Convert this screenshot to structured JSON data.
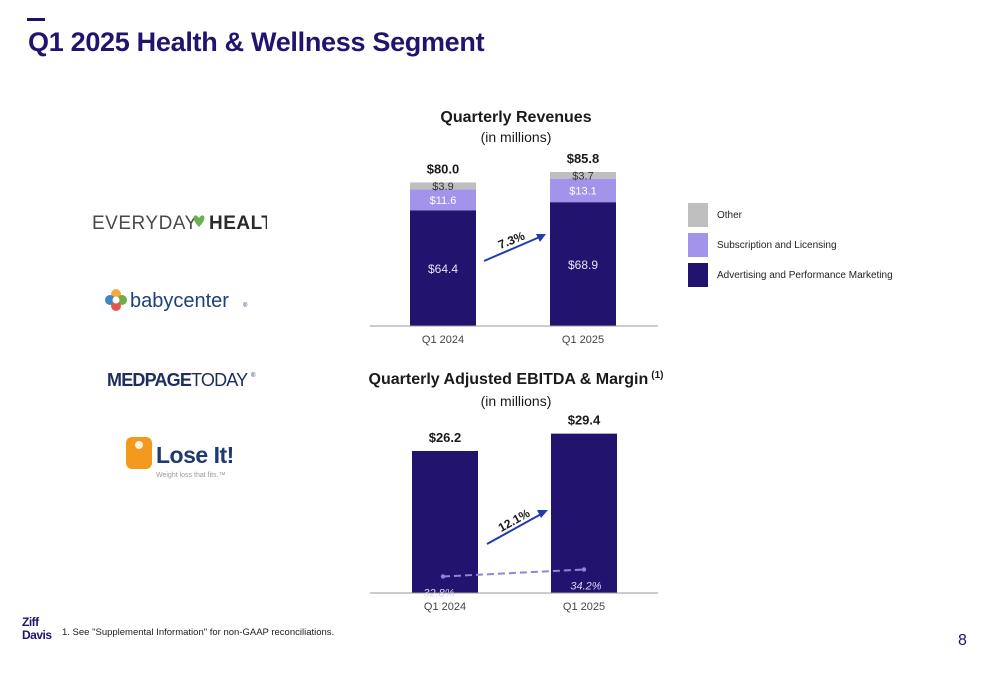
{
  "page": {
    "title": "Q1 2025 Health & Wellness Segment",
    "page_number": "8",
    "footnote": "1.  See \"Supplemental Information\" for non-GAAP reconciliations."
  },
  "brands": {
    "everyday_health": "EVERYDAY HEALTH",
    "babycenter": "babycenter",
    "medpage_today": "MEDPAGE TODAY",
    "lose_it": "Lose It!",
    "lose_it_tagline": "Weight loss that fits.",
    "ziff_davis_logo": "Ziff Davis"
  },
  "colors": {
    "navy": "#22136e",
    "lavender": "#a493ea",
    "gray": "#bfbfbf",
    "growth_arrow": "#1f3fa8",
    "margin_line": "#8d87d6"
  },
  "chart_data": [
    {
      "type": "bar",
      "stacked": true,
      "title": "Quarterly Revenues",
      "subtitle": "(in millions)",
      "categories": [
        "Q1 2024",
        "Q1 2025"
      ],
      "series": [
        {
          "name": "Advertising and Performance Marketing",
          "values": [
            64.4,
            68.9
          ],
          "labels": [
            "$64.4",
            "$68.9"
          ],
          "color": "#22136e"
        },
        {
          "name": "Subscription and Licensing",
          "values": [
            11.6,
            13.1
          ],
          "labels": [
            "$11.6",
            "$13.1"
          ],
          "color": "#a493ea"
        },
        {
          "name": "Other",
          "values": [
            3.9,
            3.7
          ],
          "labels": [
            "$3.9",
            "$3.7"
          ],
          "color": "#bfbfbf"
        }
      ],
      "totals": [
        80.0,
        85.8
      ],
      "total_labels": [
        "$80.0",
        "$85.8"
      ],
      "growth": "7.3%",
      "legend_position": "right"
    },
    {
      "type": "bar",
      "title": "Quarterly Adjusted EBITDA & Margin",
      "title_superscript": "(1)",
      "subtitle": "(in millions)",
      "categories": [
        "Q1 2024",
        "Q1 2025"
      ],
      "values": [
        26.2,
        29.4
      ],
      "value_labels": [
        "$26.2",
        "$29.4"
      ],
      "margin": [
        32.8,
        34.2
      ],
      "margin_labels": [
        "32.8%",
        "34.2%"
      ],
      "growth": "12.1%"
    }
  ]
}
